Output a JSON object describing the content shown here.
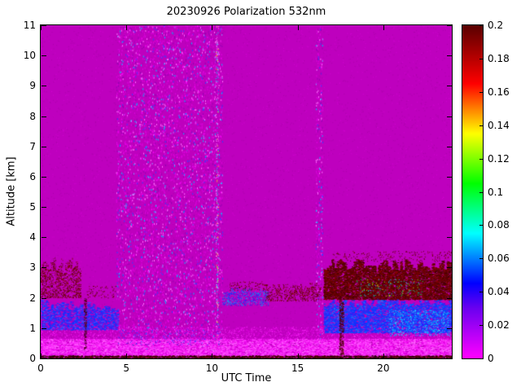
{
  "chart_data": {
    "type": "heatmap",
    "title": "20230926 Polarization 532nm",
    "xlabel": "UTC Time",
    "ylabel": "Altitude [km]",
    "x_range": [
      0,
      24
    ],
    "y_range": [
      0,
      11
    ],
    "x_ticks": [
      0,
      5,
      10,
      15,
      20
    ],
    "y_ticks": [
      0,
      1,
      2,
      3,
      4,
      5,
      6,
      7,
      8,
      9,
      10,
      11
    ],
    "grid": false,
    "background_value": 0,
    "background_color": "#BE00BE",
    "seed": 20230926,
    "colorbar": {
      "range": [
        0,
        0.2
      ],
      "ticks": [
        {
          "v": 0,
          "label": "0"
        },
        {
          "v": 0.02,
          "label": "0.02"
        },
        {
          "v": 0.04,
          "label": "0.04"
        },
        {
          "v": 0.06,
          "label": "0.06"
        },
        {
          "v": 0.08,
          "label": "0.08"
        },
        {
          "v": 0.1,
          "label": "0.1"
        },
        {
          "v": 0.12,
          "label": "0.12"
        },
        {
          "v": 0.14,
          "label": "0.14"
        },
        {
          "v": 0.16,
          "label": "0.16"
        },
        {
          "v": 0.18,
          "label": "0.18"
        },
        {
          "v": 0.2,
          "label": "0.2"
        }
      ],
      "stops": [
        [
          0,
          "#FF00FF"
        ],
        [
          0.03,
          "#6A00F0"
        ],
        [
          0.045,
          "#0000FF"
        ],
        [
          0.075,
          "#00FFFF"
        ],
        [
          0.105,
          "#00FF00"
        ],
        [
          0.135,
          "#FFFF00"
        ],
        [
          0.165,
          "#FF0000"
        ],
        [
          0.2,
          "#5A0000"
        ]
      ]
    },
    "regions": [
      {
        "name": "global-noise",
        "utc": [
          0,
          24
        ],
        "alt": [
          0,
          11
        ],
        "density": 0.035,
        "approx_value": 0,
        "colors": [
          [
            "#AC00AC",
            3
          ],
          [
            "#D200D2",
            2
          ]
        ]
      },
      {
        "name": "laser-speckle-band",
        "utc": [
          4.4,
          10.6
        ],
        "alt": [
          0.3,
          11
        ],
        "density": 0.11,
        "size": [
          1,
          2
        ],
        "approx_value": 0.01,
        "colors": [
          [
            "#DA00DA",
            26
          ],
          [
            "#9600B4",
            16
          ],
          [
            "#FF6EFF",
            13
          ],
          [
            "#E000E0",
            20
          ],
          [
            "#3C3CFF",
            8
          ],
          [
            "#00BFFF",
            5
          ],
          [
            "#9090FF",
            5
          ],
          [
            "#FF00FF",
            7
          ]
        ]
      },
      {
        "name": "speckle-column-16",
        "utc": [
          16.05,
          16.45
        ],
        "alt": [
          0.3,
          11
        ],
        "density": 0.13,
        "size": [
          1,
          2
        ],
        "approx_value": 0.01,
        "colors": [
          [
            "#DA00DA",
            26
          ],
          [
            "#9600B4",
            16
          ],
          [
            "#FF6EFF",
            13
          ],
          [
            "#E000E0",
            20
          ],
          [
            "#3C3CFF",
            8
          ],
          [
            "#00BFFF",
            5
          ],
          [
            "#9090FF",
            5
          ]
        ]
      },
      {
        "name": "dotted-column-10p3",
        "utc": [
          10.22,
          10.36
        ],
        "alt": [
          0.3,
          11
        ],
        "density": 0.22,
        "approx_value": 0.02,
        "colors": [
          [
            "#00E5FF",
            2
          ],
          [
            "#FFE100",
            1
          ],
          [
            "#FF80FF",
            3
          ]
        ]
      },
      {
        "name": "surface-bright-layer",
        "utc": [
          0,
          24
        ],
        "alt": [
          0.08,
          0.65
        ],
        "density": 0.95,
        "size": [
          2,
          1
        ],
        "approx_value": 0.005,
        "colors": [
          [
            "#FF2CFF",
            5
          ],
          [
            "#FF66FF",
            3
          ],
          [
            "#EA00EA",
            3
          ]
        ]
      },
      {
        "name": "surface-upper-mix",
        "utc": [
          0,
          24
        ],
        "alt": [
          0.6,
          1.05
        ],
        "density": 0.4,
        "approx_value": 0.004,
        "colors": [
          [
            "#FF2CFF",
            2
          ],
          [
            "#E000E0",
            3
          ],
          [
            "#C800C8",
            2
          ]
        ]
      },
      {
        "name": "blue-band-left",
        "utc": [
          0,
          4.5
        ],
        "alt": [
          0.95,
          1.95
        ],
        "density": 0.55,
        "size": [
          2,
          1
        ],
        "jitter": 0.35,
        "approx_value": 0.05,
        "colors": [
          [
            "#1E28FF",
            5
          ],
          [
            "#0048FF",
            3
          ],
          [
            "#5050FF",
            2
          ],
          [
            "#9000D0",
            2
          ]
        ]
      },
      {
        "name": "blue-mid-cluster",
        "utc": [
          10.6,
          13.3
        ],
        "alt": [
          1.75,
          2.35
        ],
        "density": 0.45,
        "jitter": 0.3,
        "approx_value": 0.05,
        "colors": [
          [
            "#1E28FF",
            4
          ],
          [
            "#00A8FF",
            3
          ],
          [
            "#8000C0",
            2
          ]
        ]
      },
      {
        "name": "blue-band-right",
        "utc": [
          16.5,
          24
        ],
        "alt": [
          0.85,
          2.0
        ],
        "density": 0.65,
        "size": [
          2,
          1
        ],
        "jitter": 0.25,
        "approx_value": 0.05,
        "colors": [
          [
            "#1E28FF",
            5
          ],
          [
            "#0048FF",
            4
          ],
          [
            "#4040FF",
            2
          ],
          [
            "#0090FF",
            1
          ]
        ]
      },
      {
        "name": "cyan-patch-right",
        "utc": [
          20.3,
          23.9
        ],
        "alt": [
          0.75,
          1.6
        ],
        "density": 0.3,
        "approx_value": 0.07,
        "colors": [
          [
            "#00C8FF",
            3
          ],
          [
            "#40E0FF",
            1
          ],
          [
            "#1E28FF",
            2
          ]
        ]
      },
      {
        "name": "blue-dots-under-speckle",
        "utc": [
          4.5,
          10.5
        ],
        "alt": [
          0.45,
          0.95
        ],
        "density": 0.12,
        "approx_value": 0.03,
        "colors": [
          [
            "#3C3CFF",
            2
          ],
          [
            "#9600B4",
            2
          ]
        ]
      },
      {
        "name": "aerosol-maroon-left",
        "utc": [
          0,
          2.35
        ],
        "alt": [
          2.0,
          3.35
        ],
        "density": 0.5,
        "jitter": 0.4,
        "approx_value": 0.2,
        "colors": [
          [
            "#5C0000",
            5
          ],
          [
            "#7A0000",
            3
          ],
          [
            "#8F0000",
            2
          ],
          [
            "#BE00BE",
            2
          ]
        ]
      },
      {
        "name": "maroon-scatter-left-tail",
        "utc": [
          2.6,
          4.4
        ],
        "alt": [
          2.0,
          2.4
        ],
        "density": 0.12,
        "approx_value": 0.2,
        "colors": [
          [
            "#5C0000",
            3
          ],
          [
            "#7A0000",
            2
          ]
        ]
      },
      {
        "name": "maroon-mid",
        "utc": [
          13.1,
          16.35
        ],
        "alt": [
          1.9,
          2.5
        ],
        "density": 0.42,
        "jitter": 0.35,
        "approx_value": 0.2,
        "colors": [
          [
            "#5C0000",
            5
          ],
          [
            "#7A0000",
            3
          ],
          [
            "#8F0000",
            2
          ],
          [
            "#BE00BE",
            2
          ]
        ]
      },
      {
        "name": "maroon-above-blue-mid",
        "utc": [
          11.0,
          13.2
        ],
        "alt": [
          2.25,
          2.55
        ],
        "density": 0.18,
        "approx_value": 0.2,
        "colors": [
          [
            "#5C0000",
            3
          ],
          [
            "#7A0000",
            2
          ]
        ]
      },
      {
        "name": "aerosol-maroon-right",
        "utc": [
          16.5,
          24
        ],
        "alt": [
          1.95,
          3.3
        ],
        "density": 0.9,
        "size": [
          2,
          1
        ],
        "jitter": 0.3,
        "approx_value": 0.2,
        "colors": [
          [
            "#5C0000",
            6
          ],
          [
            "#700000",
            4
          ],
          [
            "#8F0000",
            2
          ],
          [
            "#3F0000",
            2
          ]
        ]
      },
      {
        "name": "maroon-right-top-fringe",
        "utc": [
          17.0,
          24
        ],
        "alt": [
          3.2,
          3.55
        ],
        "density": 0.1,
        "approx_value": 0.2,
        "colors": [
          [
            "#5C0000",
            3
          ],
          [
            "#7A0000",
            2
          ]
        ]
      },
      {
        "name": "green-specks-in-maroon",
        "utc": [
          18.3,
          22.3
        ],
        "alt": [
          2.05,
          2.65
        ],
        "density": 0.07,
        "approx_value": 0.1,
        "colors": [
          [
            "#00E07C",
            2
          ],
          [
            "#00C8FF",
            1
          ],
          [
            "#B0FF00",
            1
          ]
        ]
      },
      {
        "name": "dark-column-17p5",
        "utc": [
          17.42,
          17.68
        ],
        "alt": [
          0.12,
          2.0
        ],
        "density": 0.85,
        "approx_value": 0.2,
        "colors": [
          [
            "#4A0000",
            4
          ],
          [
            "#6A0000",
            3
          ],
          [
            "#200000",
            1
          ]
        ]
      },
      {
        "name": "dark-column-2p6",
        "utc": [
          2.52,
          2.66
        ],
        "alt": [
          0.3,
          2.0
        ],
        "density": 0.8,
        "approx_value": 0.15,
        "colors": [
          [
            "#500050",
            2
          ],
          [
            "#4A0000",
            3
          ]
        ]
      },
      {
        "name": "ground-line",
        "utc": [
          0,
          24
        ],
        "alt": [
          0,
          0.1
        ],
        "density": 0.95,
        "size": [
          2,
          1
        ],
        "approx_value": 0.2,
        "colors": [
          [
            "#3A0000",
            3
          ],
          [
            "#600000",
            2
          ],
          [
            "#100000",
            1
          ]
        ]
      }
    ]
  }
}
